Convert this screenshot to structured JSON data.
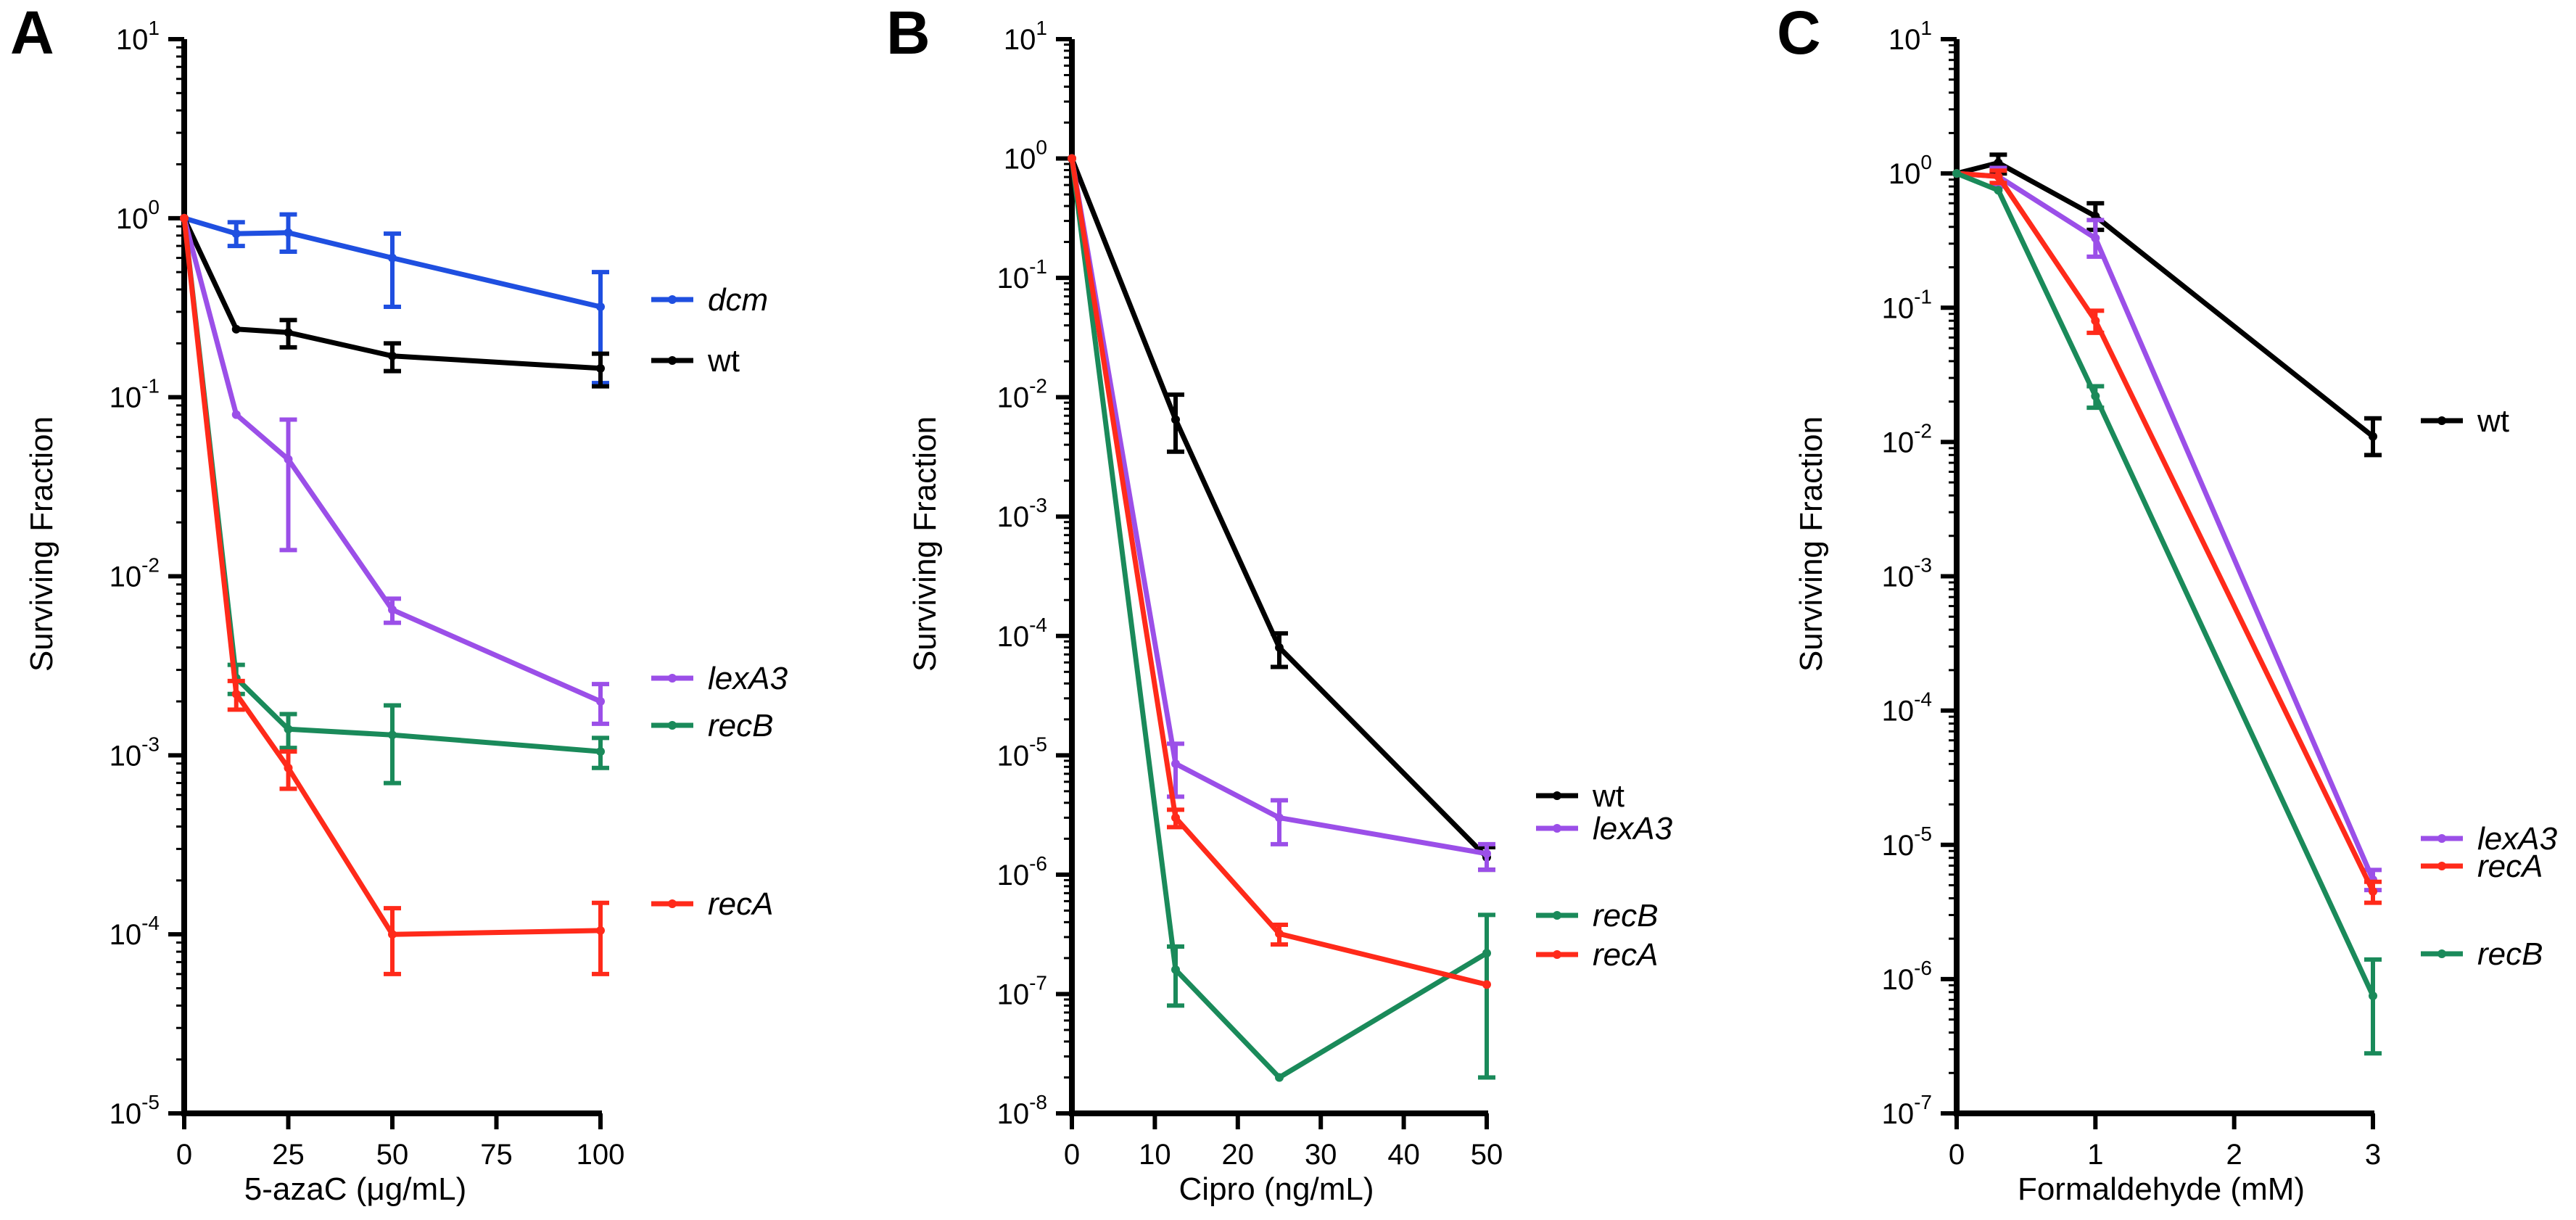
{
  "colors": {
    "wt": "#000000",
    "dcm": "#1f4fe0",
    "lexA3": "#9b4fe8",
    "recB": "#1a8a5a",
    "recA": "#ff2a1a"
  },
  "chart_data": [
    {
      "panel": "A",
      "type": "line",
      "xlabel": "5-azaC (μg/mL)",
      "ylabel": "Surviving Fraction",
      "yscale": "log",
      "xlim": [
        0,
        100
      ],
      "ylim_exp": [
        -5,
        1
      ],
      "xticks": [
        0,
        25,
        50,
        75,
        100
      ],
      "xtick_labels": [
        "0",
        "25",
        "50",
        "75",
        "100"
      ],
      "yticks_exp": [
        1,
        0,
        -1,
        -2,
        -3,
        -4,
        -5
      ],
      "series": [
        {
          "name": "dcm",
          "key": "dcm",
          "italic": true,
          "x": [
            0,
            12.5,
            25,
            50,
            100
          ],
          "y": [
            1.0,
            0.82,
            0.83,
            0.6,
            0.32
          ],
          "err_lo": [
            1.0,
            0.7,
            0.65,
            0.32,
            0.12
          ],
          "err_hi": [
            1.0,
            0.95,
            1.05,
            0.82,
            0.5
          ]
        },
        {
          "name": "wt",
          "key": "wt",
          "italic": false,
          "x": [
            0,
            12.5,
            25,
            50,
            100
          ],
          "y": [
            1.0,
            0.24,
            0.23,
            0.17,
            0.145
          ],
          "err_lo": [
            1.0,
            0.24,
            0.19,
            0.14,
            0.115
          ],
          "err_hi": [
            1.0,
            0.24,
            0.27,
            0.2,
            0.175
          ]
        },
        {
          "name": "lexA3",
          "key": "lexA3",
          "italic": true,
          "x": [
            0,
            12.5,
            25,
            50,
            100
          ],
          "y": [
            1.0,
            0.08,
            0.045,
            0.0065,
            0.002
          ],
          "err_lo": [
            1.0,
            0.08,
            0.014,
            0.0055,
            0.0015
          ],
          "err_hi": [
            1.0,
            0.08,
            0.075,
            0.0075,
            0.0025
          ]
        },
        {
          "name": "recB",
          "key": "recB",
          "italic": true,
          "x": [
            0,
            12.5,
            25,
            50,
            100
          ],
          "y": [
            1.0,
            0.0027,
            0.0014,
            0.0013,
            0.00105
          ],
          "err_lo": [
            1.0,
            0.0022,
            0.0011,
            0.0007,
            0.00085
          ],
          "err_hi": [
            1.0,
            0.0032,
            0.0017,
            0.0019,
            0.00125
          ]
        },
        {
          "name": "recA",
          "key": "recA",
          "italic": true,
          "x": [
            0,
            12.5,
            25,
            50,
            100
          ],
          "y": [
            1.0,
            0.0022,
            0.00085,
            0.0001,
            0.000105
          ],
          "err_lo": [
            1.0,
            0.0018,
            0.00065,
            6e-05,
            6e-05
          ],
          "err_hi": [
            1.0,
            0.0026,
            0.00105,
            0.00014,
            0.00015
          ]
        }
      ],
      "legend": [
        {
          "key": "dcm",
          "label": "dcm",
          "italic": true
        },
        {
          "key": "wt",
          "label": "wt",
          "italic": false
        },
        {
          "key": "lexA3",
          "label": "lexA3",
          "italic": true
        },
        {
          "key": "recB",
          "label": "recB",
          "italic": true
        },
        {
          "key": "recA",
          "label": "recA",
          "italic": true
        }
      ]
    },
    {
      "panel": "B",
      "type": "line",
      "xlabel": "Cipro (ng/mL)",
      "ylabel": "Surviving Fraction",
      "yscale": "log",
      "xlim": [
        0,
        50
      ],
      "ylim_exp": [
        -8,
        1
      ],
      "xticks": [
        0,
        10,
        20,
        30,
        40,
        50
      ],
      "xtick_labels": [
        "0",
        "10",
        "20",
        "30",
        "40",
        "50"
      ],
      "yticks_exp": [
        1,
        0,
        -1,
        -2,
        -3,
        -4,
        -5,
        -6,
        -7,
        -8
      ],
      "series": [
        {
          "name": "wt",
          "key": "wt",
          "italic": false,
          "x": [
            0,
            12.5,
            25,
            50
          ],
          "y": [
            1.0,
            0.0065,
            8e-05,
            1.4e-06
          ],
          "err_lo": [
            1.0,
            0.0035,
            5.5e-05,
            1.1e-06
          ],
          "err_hi": [
            1.0,
            0.0105,
            0.000105,
            1.7e-06
          ]
        },
        {
          "name": "lexA3",
          "key": "lexA3",
          "italic": true,
          "x": [
            0,
            12.5,
            25,
            50
          ],
          "y": [
            1.0,
            8.5e-06,
            3e-06,
            1.5e-06
          ],
          "err_lo": [
            1.0,
            4.5e-06,
            1.8e-06,
            1.1e-06
          ],
          "err_hi": [
            1.0,
            1.25e-05,
            4.2e-06,
            1.8e-06
          ]
        },
        {
          "name": "recB",
          "key": "recB",
          "italic": true,
          "x": [
            0,
            12.5,
            25,
            50
          ],
          "y": [
            1.0,
            1.6e-07,
            2e-08,
            2.2e-07
          ],
          "err_lo": [
            1.0,
            8e-08,
            2e-08,
            2e-08
          ],
          "err_hi": [
            1.0,
            2.5e-07,
            2e-08,
            4.6e-07
          ]
        },
        {
          "name": "recA",
          "key": "recA",
          "italic": true,
          "x": [
            0,
            12.5,
            25,
            50
          ],
          "y": [
            1.0,
            3e-06,
            3.2e-07,
            1.2e-07
          ],
          "err_lo": [
            1.0,
            2.5e-06,
            2.6e-07,
            1.2e-07
          ],
          "err_hi": [
            1.0,
            3.5e-06,
            3.8e-07,
            1.2e-07
          ]
        }
      ],
      "legend": [
        {
          "key": "wt",
          "label": "wt",
          "italic": false
        },
        {
          "key": "lexA3",
          "label": "lexA3",
          "italic": true
        },
        {
          "key": "recB",
          "label": "recB",
          "italic": true
        },
        {
          "key": "recA",
          "label": "recA",
          "italic": true
        }
      ]
    },
    {
      "panel": "C",
      "type": "line",
      "xlabel": "Formaldehyde (mM)",
      "ylabel": "Surviving Fraction",
      "yscale": "log",
      "xlim": [
        0,
        3
      ],
      "ylim_exp": [
        -7,
        1
      ],
      "xticks": [
        0,
        1,
        2,
        3
      ],
      "xtick_labels": [
        "0",
        "1",
        "2",
        "3"
      ],
      "yticks_exp": [
        1,
        0,
        -1,
        -2,
        -3,
        -4,
        -5,
        -6,
        -7
      ],
      "series": [
        {
          "name": "wt",
          "key": "wt",
          "italic": false,
          "x": [
            0,
            0.3,
            1,
            3
          ],
          "y": [
            1.0,
            1.2,
            0.48,
            0.011
          ],
          "err_lo": [
            1.0,
            1.0,
            0.38,
            0.008
          ],
          "err_hi": [
            1.0,
            1.38,
            0.6,
            0.015
          ]
        },
        {
          "name": "lexA3",
          "key": "lexA3",
          "italic": true,
          "x": [
            0,
            0.3,
            1,
            3
          ],
          "y": [
            1.0,
            0.95,
            0.33,
            5.5e-06
          ],
          "err_lo": [
            1.0,
            0.8,
            0.24,
            4.6e-06
          ],
          "err_hi": [
            1.0,
            1.1,
            0.45,
            6.5e-06
          ]
        },
        {
          "name": "recA",
          "key": "recA",
          "italic": true,
          "x": [
            0,
            0.3,
            1,
            3
          ],
          "y": [
            1.0,
            0.95,
            0.08,
            4.5e-06
          ],
          "err_lo": [
            1.0,
            0.85,
            0.065,
            3.7e-06
          ],
          "err_hi": [
            1.0,
            1.05,
            0.095,
            5.3e-06
          ]
        },
        {
          "name": "recB",
          "key": "recB",
          "italic": true,
          "x": [
            0,
            0.3,
            1,
            3
          ],
          "y": [
            1.0,
            0.75,
            0.022,
            7.5e-07
          ],
          "err_lo": [
            1.0,
            0.75,
            0.018,
            2.8e-07
          ],
          "err_hi": [
            1.0,
            0.75,
            0.026,
            1.4e-06
          ]
        }
      ],
      "legend": [
        {
          "key": "wt",
          "label": "wt",
          "italic": false
        },
        {
          "key": "lexA3",
          "label": "lexA3",
          "italic": true
        },
        {
          "key": "recA",
          "label": "recA",
          "italic": true
        },
        {
          "key": "recB",
          "label": "recB",
          "italic": true
        }
      ]
    }
  ]
}
